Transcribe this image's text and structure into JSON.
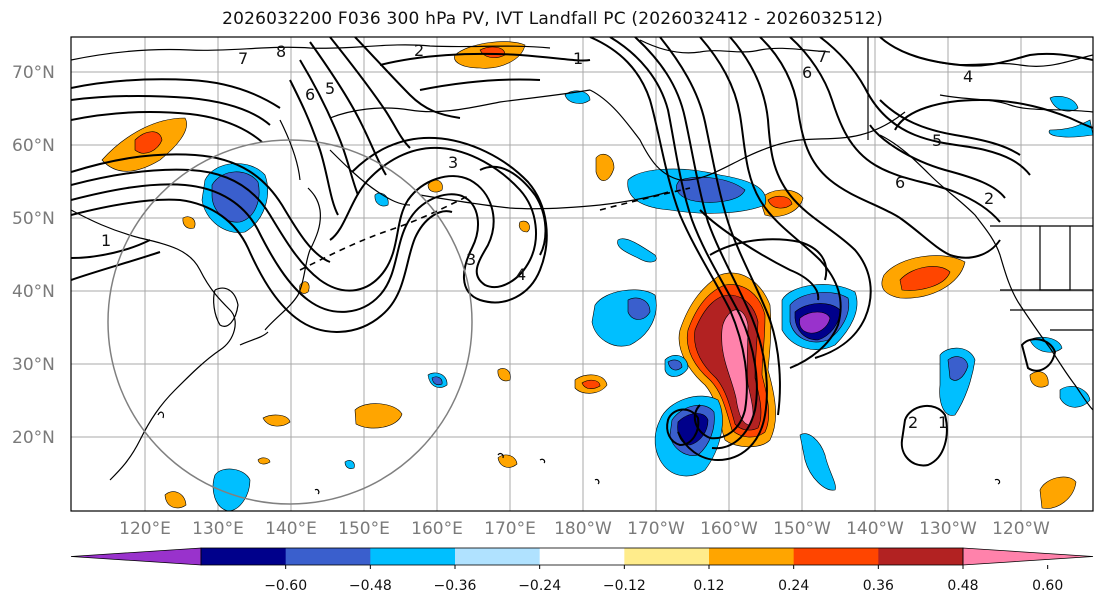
{
  "title": "2026032200 F036 300 hPa PV, IVT Landfall PC (2026032412 - 2026032512)",
  "lat_labels": [
    "70°N",
    "60°N",
    "50°N",
    "40°N",
    "30°N",
    "20°N"
  ],
  "lon_labels": [
    "120°E",
    "130°E",
    "140°E",
    "150°E",
    "160°E",
    "170°E",
    "180°W",
    "170°W",
    "160°W",
    "150°W",
    "140°W",
    "130°W",
    "120°W"
  ],
  "colorbar": {
    "ticks": [
      "−0.60",
      "−0.48",
      "−0.36",
      "−0.24",
      "−0.12",
      "0.12",
      "0.24",
      "0.36",
      "0.48",
      "0.60"
    ],
    "colors": [
      "#9932CC",
      "#00008B",
      "#3A5FCD",
      "#00BFFF",
      "#B0E2FF",
      "#FFFFFF",
      "#FFEC8B",
      "#FFA500",
      "#FF4500",
      "#B22222",
      "#FF82AB"
    ]
  },
  "pv_contour_labels": [
    "1",
    "2",
    "3",
    "4",
    "5",
    "6",
    "7",
    "8"
  ],
  "colors": {
    "grid": "#9a9a9a",
    "coast": "#000000",
    "contour": "#000000",
    "circle": "#808080"
  }
}
